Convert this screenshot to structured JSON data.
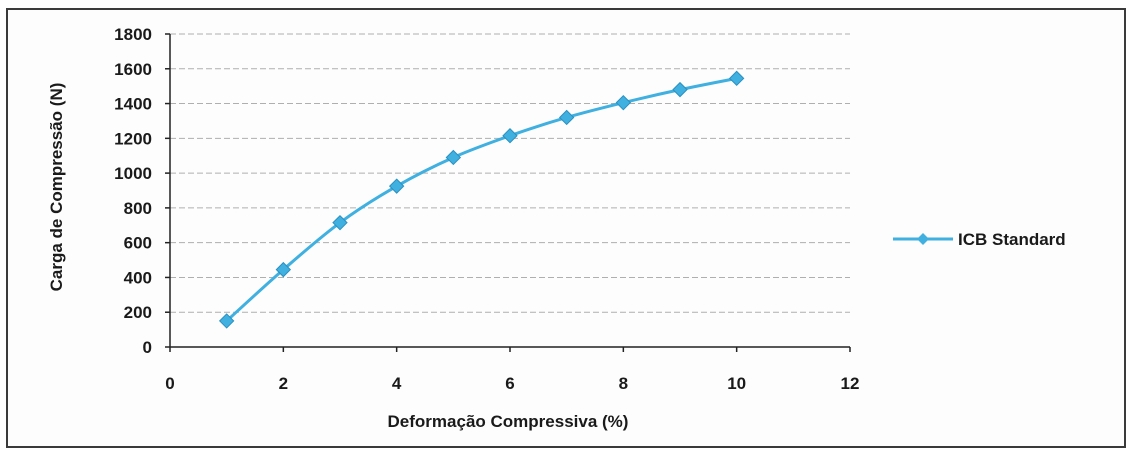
{
  "chart_data": {
    "type": "line",
    "xlabel": "Deformação Compressiva (%)",
    "ylabel": "Carga de Compressão (N)",
    "xlim": [
      0,
      12
    ],
    "ylim": [
      0,
      1800
    ],
    "xticks": [
      0,
      2,
      4,
      6,
      8,
      10,
      12
    ],
    "yticks": [
      0,
      200,
      400,
      600,
      800,
      1000,
      1200,
      1400,
      1600,
      1800
    ],
    "grid": "horizontal",
    "legend_position": "right",
    "series": [
      {
        "name": "ICB Standard",
        "color": "#3fb0e0",
        "marker": "diamond",
        "x": [
          1,
          2,
          3,
          4,
          5,
          6,
          7,
          8,
          9,
          10
        ],
        "y": [
          150,
          445,
          715,
          925,
          1090,
          1215,
          1320,
          1405,
          1480,
          1545
        ]
      }
    ]
  }
}
